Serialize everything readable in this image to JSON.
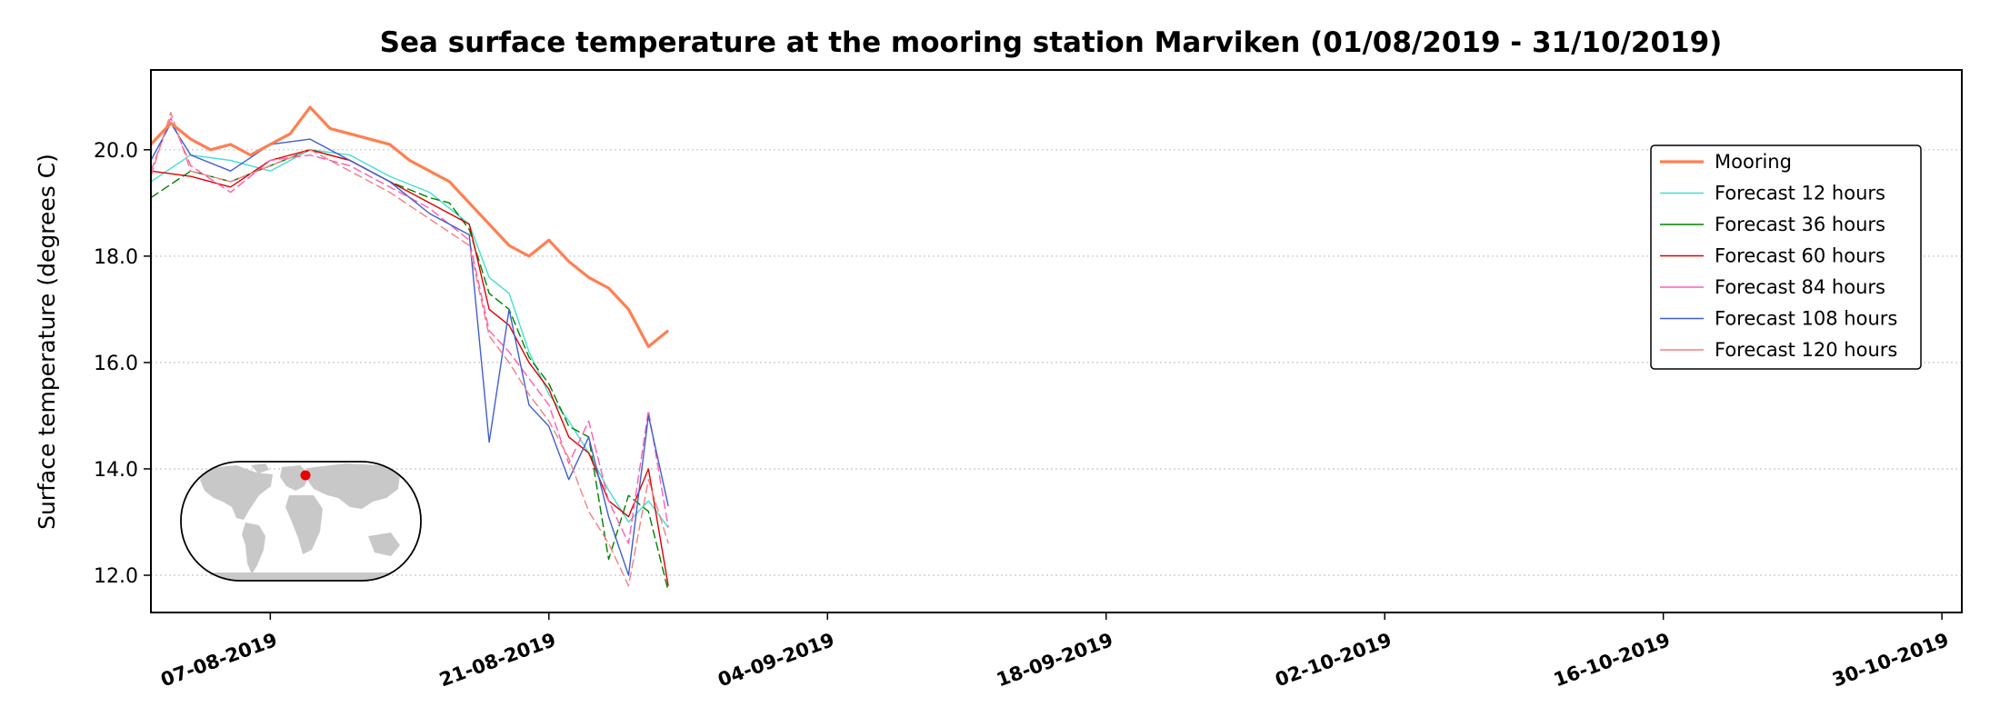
{
  "chart_data": {
    "type": "line",
    "title": "Sea surface temperature at the mooring station Marviken (01/08/2019 - 31/10/2019)",
    "xlabel": "",
    "ylabel": "Surface temperature (degrees C)",
    "xlim": [
      "2019-08-01",
      "2019-10-31"
    ],
    "ylim": [
      11.3,
      21.5
    ],
    "yticks": [
      "12.0",
      "14.0",
      "16.0",
      "18.0",
      "20.0"
    ],
    "xticks": [
      "07-08-2019",
      "21-08-2019",
      "04-09-2019",
      "18-09-2019",
      "02-10-2019",
      "16-10-2019",
      "30-10-2019"
    ],
    "grid": "horizontal dotted",
    "legend_position": "upper-right",
    "inset": "world-map-marker",
    "series": [
      {
        "name": "Mooring",
        "color": "#ff7f50",
        "x": [
          "2019-08-01",
          "2019-08-02",
          "2019-08-03",
          "2019-08-04",
          "2019-08-05",
          "2019-08-06",
          "2019-08-07",
          "2019-08-08",
          "2019-08-09",
          "2019-08-10",
          "2019-08-11",
          "2019-08-12",
          "2019-08-13",
          "2019-08-14",
          "2019-08-15",
          "2019-08-16",
          "2019-08-17",
          "2019-08-18",
          "2019-08-19",
          "2019-08-20",
          "2019-08-21",
          "2019-08-22",
          "2019-08-23",
          "2019-08-24",
          "2019-08-25",
          "2019-08-26",
          "2019-08-27"
        ],
        "y": [
          20.1,
          20.5,
          20.2,
          20.0,
          20.1,
          19.9,
          20.1,
          20.3,
          20.8,
          20.4,
          20.3,
          20.2,
          20.1,
          19.8,
          19.6,
          19.4,
          19.0,
          18.6,
          18.2,
          18.0,
          18.3,
          17.9,
          17.6,
          17.4,
          17.0,
          16.3,
          16.6
        ]
      },
      {
        "name": "Forecast 12 hours",
        "color": "#40e0d0",
        "x": [
          "2019-08-01",
          "2019-08-03",
          "2019-08-05",
          "2019-08-07",
          "2019-08-09",
          "2019-08-11",
          "2019-08-13",
          "2019-08-15",
          "2019-08-17",
          "2019-08-18",
          "2019-08-19",
          "2019-08-20",
          "2019-08-21",
          "2019-08-22",
          "2019-08-23",
          "2019-08-24",
          "2019-08-25",
          "2019-08-26",
          "2019-08-27"
        ],
        "y": [
          19.4,
          19.9,
          19.8,
          19.6,
          20.0,
          19.9,
          19.5,
          19.2,
          18.6,
          17.6,
          17.3,
          16.2,
          15.4,
          14.9,
          14.3,
          13.6,
          13.0,
          13.4,
          12.9
        ]
      },
      {
        "name": "Forecast 36 hours",
        "color": "#008000",
        "x": [
          "2019-08-01",
          "2019-08-03",
          "2019-08-05",
          "2019-08-07",
          "2019-08-09",
          "2019-08-11",
          "2019-08-13",
          "2019-08-15",
          "2019-08-16",
          "2019-08-17",
          "2019-08-18",
          "2019-08-19",
          "2019-08-20",
          "2019-08-21",
          "2019-08-22",
          "2019-08-23",
          "2019-08-24",
          "2019-08-25",
          "2019-08-26",
          "2019-08-27"
        ],
        "y": [
          19.1,
          19.6,
          19.4,
          19.7,
          20.0,
          19.8,
          19.4,
          19.1,
          19.0,
          18.5,
          17.3,
          17.0,
          16.1,
          15.6,
          14.8,
          14.6,
          12.3,
          13.5,
          13.2,
          11.7
        ]
      },
      {
        "name": "Forecast 60 hours",
        "color": "#e00000",
        "x": [
          "2019-08-01",
          "2019-08-03",
          "2019-08-05",
          "2019-08-07",
          "2019-08-09",
          "2019-08-11",
          "2019-08-13",
          "2019-08-15",
          "2019-08-17",
          "2019-08-18",
          "2019-08-19",
          "2019-08-20",
          "2019-08-21",
          "2019-08-22",
          "2019-08-23",
          "2019-08-24",
          "2019-08-25",
          "2019-08-26",
          "2019-08-27"
        ],
        "y": [
          19.6,
          19.5,
          19.3,
          19.8,
          20.0,
          19.8,
          19.4,
          19.0,
          18.6,
          17.0,
          16.7,
          16.0,
          15.5,
          14.6,
          14.3,
          13.4,
          13.1,
          14.0,
          11.8
        ]
      },
      {
        "name": "Forecast 84 hours",
        "color": "#ff5cb3",
        "x": [
          "2019-08-01",
          "2019-08-02",
          "2019-08-03",
          "2019-08-05",
          "2019-08-07",
          "2019-08-09",
          "2019-08-11",
          "2019-08-13",
          "2019-08-15",
          "2019-08-17",
          "2019-08-18",
          "2019-08-19",
          "2019-08-20",
          "2019-08-21",
          "2019-08-22",
          "2019-08-23",
          "2019-08-24",
          "2019-08-25",
          "2019-08-26",
          "2019-08-27"
        ],
        "y": [
          19.6,
          20.6,
          19.7,
          19.2,
          19.8,
          19.9,
          19.7,
          19.3,
          18.9,
          18.3,
          16.6,
          16.2,
          15.7,
          15.2,
          14.1,
          14.9,
          13.4,
          12.6,
          15.1,
          12.9
        ]
      },
      {
        "name": "Forecast 108 hours",
        "color": "#3f5fd0",
        "x": [
          "2019-08-01",
          "2019-08-02",
          "2019-08-03",
          "2019-08-05",
          "2019-08-07",
          "2019-08-09",
          "2019-08-11",
          "2019-08-13",
          "2019-08-15",
          "2019-08-17",
          "2019-08-18",
          "2019-08-19",
          "2019-08-20",
          "2019-08-21",
          "2019-08-22",
          "2019-08-23",
          "2019-08-24",
          "2019-08-25",
          "2019-08-26",
          "2019-08-27"
        ],
        "y": [
          19.8,
          20.5,
          19.9,
          19.6,
          20.1,
          20.2,
          19.8,
          19.4,
          18.8,
          18.4,
          14.5,
          17.0,
          15.2,
          14.8,
          13.8,
          14.6,
          13.1,
          12.0,
          15.0,
          13.3
        ]
      },
      {
        "name": "Forecast 120 hours",
        "color": "#f08080",
        "x": [
          "2019-08-01",
          "2019-08-02",
          "2019-08-03",
          "2019-08-05",
          "2019-08-07",
          "2019-08-09",
          "2019-08-11",
          "2019-08-13",
          "2019-08-15",
          "2019-08-17",
          "2019-08-18",
          "2019-08-19",
          "2019-08-20",
          "2019-08-21",
          "2019-08-22",
          "2019-08-23",
          "2019-08-24",
          "2019-08-25",
          "2019-08-26",
          "2019-08-27"
        ],
        "y": [
          19.5,
          20.7,
          19.6,
          19.4,
          19.7,
          20.0,
          19.6,
          19.2,
          18.7,
          18.2,
          16.5,
          16.0,
          15.4,
          14.9,
          14.2,
          13.2,
          12.6,
          11.8,
          13.8,
          12.6
        ]
      }
    ]
  }
}
